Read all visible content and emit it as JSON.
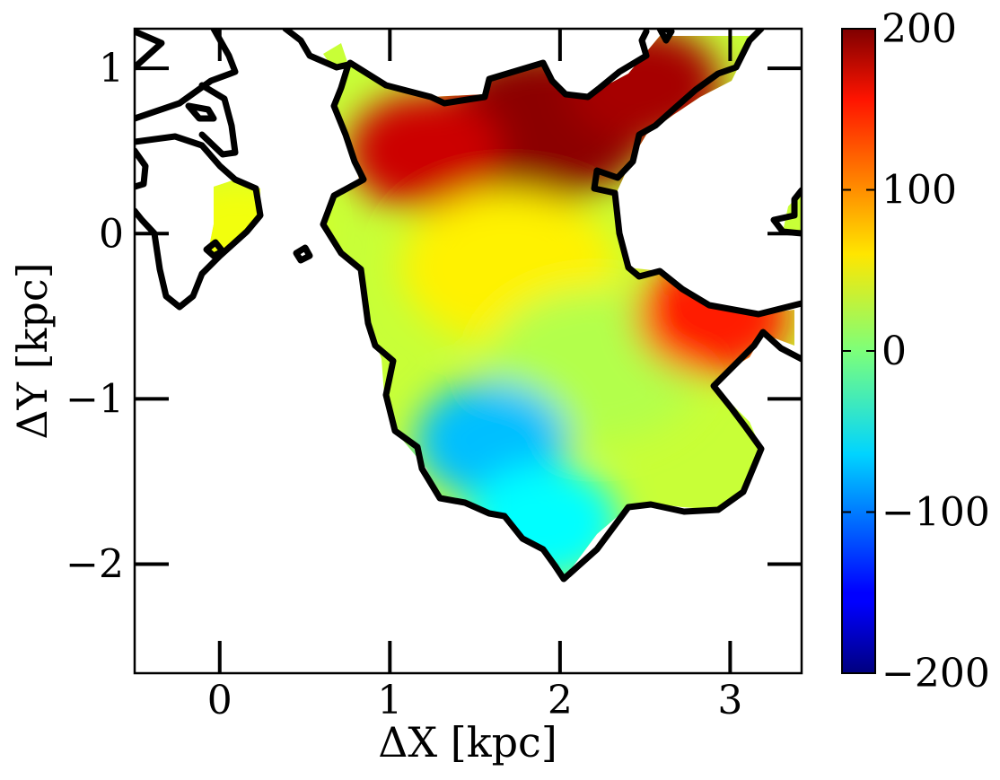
{
  "chart_data": [
    {
      "type": "heatmap",
      "title": "",
      "xlabel": "ΔX [kpc]",
      "ylabel": "ΔY [kpc]",
      "xlim": [
        -0.5,
        3.42
      ],
      "ylim": [
        -2.66,
        1.24
      ],
      "x_ticks": [
        0,
        1,
        2,
        3
      ],
      "y_ticks": [
        1,
        0,
        -1,
        -2
      ],
      "x_tick_labels": [
        "0",
        "1",
        "2",
        "3"
      ],
      "y_tick_labels": [
        "1",
        "0",
        "−1",
        "−2"
      ],
      "colormap": "jet",
      "color_range": [
        -200,
        200
      ],
      "grid": false,
      "contour_color": "#000000",
      "regions": [
        {
          "name": "upper red lobe",
          "center": [
            1.9,
            0.65
          ],
          "value": 195
        },
        {
          "name": "upper right red",
          "center": [
            2.5,
            0.9
          ],
          "value": 185
        },
        {
          "name": "upper-left red",
          "center": [
            1.2,
            0.5
          ],
          "value": 170
        },
        {
          "name": "central yellow",
          "center": [
            1.7,
            -0.2
          ],
          "value": 55
        },
        {
          "name": "central green",
          "center": [
            2.2,
            -0.8
          ],
          "value": 20
        },
        {
          "name": "blue trough",
          "center": [
            1.6,
            -1.25
          ],
          "value": -75
        },
        {
          "name": "lower cyan",
          "center": [
            1.9,
            -1.75
          ],
          "value": -50
        },
        {
          "name": "right orange edge",
          "center": [
            2.9,
            -0.5
          ],
          "value": 140
        },
        {
          "name": "left island",
          "center": [
            0.1,
            0.0
          ],
          "value": 45
        }
      ]
    },
    {
      "type": "colorbar",
      "range": [
        -200,
        200
      ],
      "ticks": [
        200,
        100,
        0,
        -100,
        -200
      ],
      "tick_labels": [
        "200",
        "100",
        "0",
        "−100",
        "−200"
      ]
    }
  ]
}
